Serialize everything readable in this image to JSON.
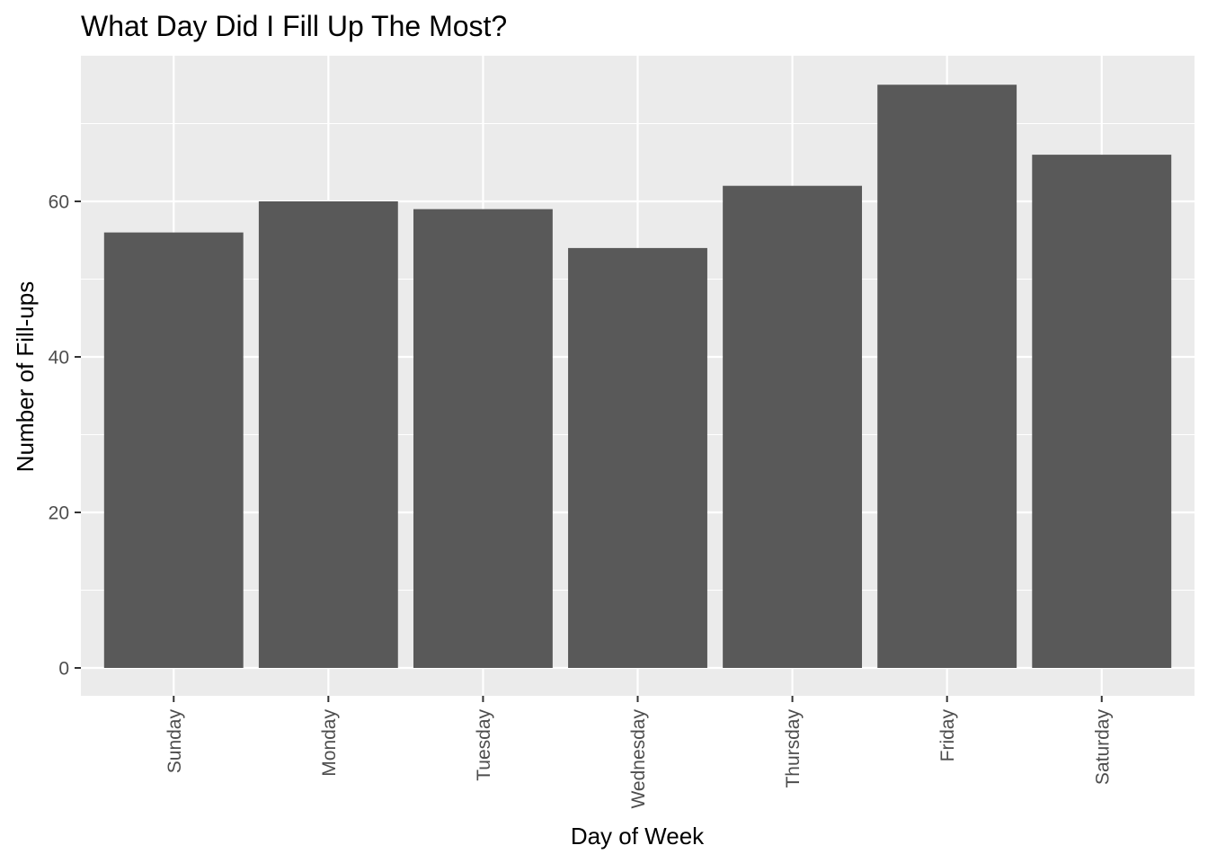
{
  "chart_data": {
    "type": "bar",
    "title": "What Day Did I Fill Up The Most?",
    "xlabel": "Day of Week",
    "ylabel": "Number of Fill-ups",
    "categories": [
      "Sunday",
      "Monday",
      "Tuesday",
      "Wednesday",
      "Thursday",
      "Friday",
      "Saturday"
    ],
    "values": [
      56,
      60,
      59,
      54,
      62,
      75,
      66
    ],
    "ylim": [
      0,
      75
    ],
    "yticks": [
      0,
      20,
      40,
      60
    ],
    "grid": true,
    "colors": {
      "panel": "#ebebeb",
      "grid": "#ffffff",
      "bar": "#595959",
      "tick_text": "#4d4d4d",
      "tick_mark": "#333333"
    }
  }
}
